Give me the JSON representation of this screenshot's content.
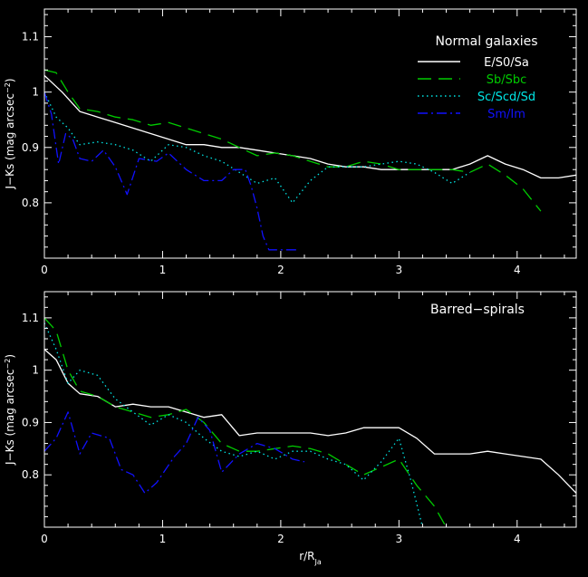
{
  "chart_data": [
    {
      "type": "line",
      "title": "Normal galaxies",
      "xlabel": "",
      "ylabel": "J−Ks (mag arcsec−2)",
      "xlim": [
        0,
        4.5
      ],
      "ylim": [
        0.7,
        1.15
      ],
      "xticks": [
        0,
        1,
        2,
        3,
        4
      ],
      "yticks": [
        0.8,
        0.9,
        1,
        1.1
      ],
      "xticklabels": [
        "0",
        "1",
        "2",
        "3",
        "4"
      ],
      "yticklabels": [
        "0.8",
        "0.9",
        "1",
        "1.1"
      ],
      "legend_position": "top-right",
      "series": [
        {
          "name": "E/S0/Sa",
          "color": "#ffffff",
          "dash": "solid",
          "x": [
            0.0,
            0.15,
            0.3,
            0.45,
            0.6,
            0.75,
            0.9,
            1.05,
            1.2,
            1.35,
            1.5,
            1.65,
            1.8,
            1.95,
            2.1,
            2.25,
            2.4,
            2.55,
            2.7,
            2.85,
            3.0,
            3.15,
            3.3,
            3.45,
            3.6,
            3.75,
            3.9,
            4.05,
            4.2,
            4.35,
            4.5
          ],
          "y": [
            1.03,
            1.0,
            0.965,
            0.955,
            0.945,
            0.935,
            0.925,
            0.915,
            0.905,
            0.905,
            0.9,
            0.9,
            0.895,
            0.89,
            0.885,
            0.88,
            0.87,
            0.865,
            0.865,
            0.86,
            0.86,
            0.86,
            0.86,
            0.86,
            0.87,
            0.885,
            0.87,
            0.86,
            0.845,
            0.845,
            0.85
          ]
        },
        {
          "name": "Sb/Sbc",
          "color": "#00cc00",
          "dash": "long-dash",
          "x": [
            0.0,
            0.1,
            0.2,
            0.3,
            0.45,
            0.6,
            0.75,
            0.9,
            1.05,
            1.2,
            1.35,
            1.5,
            1.65,
            1.8,
            1.95,
            2.1,
            2.25,
            2.4,
            2.55,
            2.7,
            2.85,
            3.0,
            3.15,
            3.3,
            3.45,
            3.6,
            3.75,
            3.9,
            4.05,
            4.2
          ],
          "y": [
            1.04,
            1.035,
            1.0,
            0.97,
            0.965,
            0.955,
            0.95,
            0.94,
            0.945,
            0.935,
            0.925,
            0.915,
            0.9,
            0.885,
            0.89,
            0.885,
            0.875,
            0.865,
            0.865,
            0.875,
            0.87,
            0.86,
            0.86,
            0.86,
            0.86,
            0.855,
            0.87,
            0.85,
            0.825,
            0.785
          ]
        },
        {
          "name": "Sc/Scd/Sd",
          "color": "#00e5e5",
          "dash": "dotted",
          "x": [
            0.0,
            0.1,
            0.2,
            0.3,
            0.45,
            0.6,
            0.75,
            0.9,
            1.05,
            1.2,
            1.35,
            1.5,
            1.65,
            1.8,
            1.95,
            2.1,
            2.25,
            2.4,
            2.55,
            2.7,
            2.85,
            3.0,
            3.15,
            3.3,
            3.45,
            3.6
          ],
          "y": [
            1.0,
            0.955,
            0.935,
            0.905,
            0.91,
            0.905,
            0.895,
            0.875,
            0.905,
            0.9,
            0.885,
            0.875,
            0.855,
            0.835,
            0.845,
            0.8,
            0.84,
            0.865,
            0.865,
            0.865,
            0.87,
            0.875,
            0.87,
            0.855,
            0.835,
            0.855
          ]
        },
        {
          "name": "Sm/Im",
          "color": "#1111ff",
          "dash": "dash-dot",
          "x": [
            0.0,
            0.06,
            0.12,
            0.18,
            0.24,
            0.3,
            0.4,
            0.5,
            0.6,
            0.7,
            0.8,
            0.95,
            1.05,
            1.2,
            1.35,
            1.5,
            1.6,
            1.7,
            1.75,
            1.8,
            1.85,
            1.9,
            2.0,
            2.1,
            2.15
          ],
          "y": [
            1.0,
            0.96,
            0.87,
            0.925,
            0.915,
            0.88,
            0.875,
            0.895,
            0.865,
            0.815,
            0.88,
            0.875,
            0.89,
            0.86,
            0.84,
            0.84,
            0.86,
            0.86,
            0.83,
            0.79,
            0.74,
            0.715,
            0.715,
            0.715,
            0.715
          ]
        }
      ]
    },
    {
      "type": "line",
      "title": "Barred−spirals",
      "xlabel": "r/Rᴶᵃ",
      "ylabel": "J−Ks (mag arcsec−2)",
      "xlim": [
        0,
        4.5
      ],
      "ylim": [
        0.7,
        1.15
      ],
      "xticks": [
        0,
        1,
        2,
        3,
        4
      ],
      "yticks": [
        0.8,
        0.9,
        1,
        1.1
      ],
      "xticklabels": [
        "0",
        "1",
        "2",
        "3",
        "4"
      ],
      "yticklabels": [
        "0.8",
        "0.9",
        "1",
        "1.1"
      ],
      "series": [
        {
          "name": "E/S0/Sa",
          "color": "#ffffff",
          "dash": "solid",
          "x": [
            0.0,
            0.1,
            0.2,
            0.3,
            0.45,
            0.6,
            0.75,
            0.9,
            1.05,
            1.2,
            1.35,
            1.5,
            1.65,
            1.8,
            1.95,
            2.1,
            2.25,
            2.4,
            2.55,
            2.7,
            2.85,
            3.0,
            3.15,
            3.3,
            3.45,
            3.6,
            3.75,
            3.9,
            4.05,
            4.2,
            4.35,
            4.5
          ],
          "y": [
            1.04,
            1.02,
            0.975,
            0.955,
            0.95,
            0.93,
            0.935,
            0.93,
            0.93,
            0.92,
            0.91,
            0.915,
            0.875,
            0.88,
            0.88,
            0.88,
            0.88,
            0.875,
            0.88,
            0.89,
            0.89,
            0.89,
            0.87,
            0.84,
            0.84,
            0.84,
            0.845,
            0.84,
            0.835,
            0.83,
            0.8,
            0.765
          ]
        },
        {
          "name": "Sb/Sbc",
          "color": "#00cc00",
          "dash": "long-dash",
          "x": [
            0.0,
            0.1,
            0.2,
            0.3,
            0.45,
            0.6,
            0.75,
            0.9,
            1.05,
            1.2,
            1.35,
            1.5,
            1.65,
            1.8,
            1.95,
            2.1,
            2.25,
            2.4,
            2.55,
            2.7,
            2.85,
            3.0,
            3.15,
            3.3,
            3.4
          ],
          "y": [
            1.1,
            1.075,
            1.0,
            0.96,
            0.95,
            0.93,
            0.92,
            0.91,
            0.915,
            0.925,
            0.9,
            0.86,
            0.845,
            0.845,
            0.85,
            0.855,
            0.85,
            0.84,
            0.82,
            0.8,
            0.815,
            0.83,
            0.78,
            0.74,
            0.7
          ]
        },
        {
          "name": "Sc/Scd/Sd",
          "color": "#00e5e5",
          "dash": "dotted",
          "x": [
            0.0,
            0.1,
            0.2,
            0.3,
            0.45,
            0.6,
            0.75,
            0.9,
            1.05,
            1.2,
            1.35,
            1.5,
            1.65,
            1.8,
            1.95,
            2.1,
            2.25,
            2.4,
            2.55,
            2.7,
            2.85,
            3.0,
            3.1,
            3.2
          ],
          "y": [
            1.09,
            1.04,
            0.975,
            1.0,
            0.99,
            0.945,
            0.92,
            0.895,
            0.915,
            0.9,
            0.87,
            0.845,
            0.835,
            0.845,
            0.83,
            0.845,
            0.845,
            0.83,
            0.82,
            0.79,
            0.825,
            0.87,
            0.79,
            0.7
          ]
        },
        {
          "name": "Sm/Im",
          "color": "#1111ff",
          "dash": "dash-dot",
          "x": [
            0.0,
            0.1,
            0.2,
            0.3,
            0.4,
            0.55,
            0.65,
            0.75,
            0.85,
            0.95,
            1.1,
            1.2,
            1.3,
            1.4,
            1.5,
            1.65,
            1.8,
            1.95,
            2.1,
            2.2
          ],
          "y": [
            0.845,
            0.87,
            0.92,
            0.84,
            0.88,
            0.87,
            0.81,
            0.8,
            0.765,
            0.785,
            0.835,
            0.86,
            0.91,
            0.885,
            0.805,
            0.84,
            0.86,
            0.85,
            0.83,
            0.825
          ]
        }
      ]
    }
  ]
}
